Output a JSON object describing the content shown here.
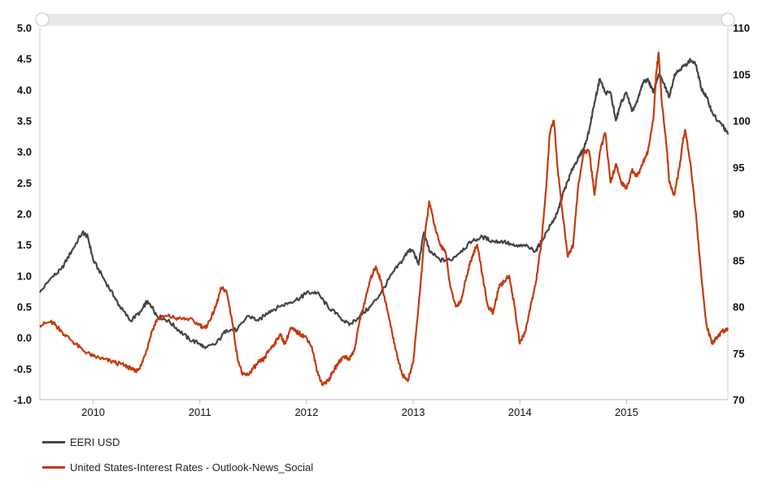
{
  "chart_data": {
    "type": "line",
    "y_left": {
      "ylim": [
        -1.0,
        5.0
      ],
      "ticks": [
        "5.0",
        "4.5",
        "4.0",
        "3.5",
        "3.0",
        "2.5",
        "2.0",
        "1.5",
        "1.0",
        "0.5",
        "0.0",
        "-0.5",
        "-1.0"
      ]
    },
    "y_right": {
      "ylim": [
        70,
        110
      ],
      "ticks": [
        "110",
        "105",
        "100",
        "95",
        "90",
        "85",
        "80",
        "75",
        "70"
      ]
    },
    "x_ticks": [
      {
        "label": "2010",
        "x": 2010.0
      },
      {
        "label": "2011",
        "x": 2011.0
      },
      {
        "label": "2012",
        "x": 2012.0
      },
      {
        "label": "2013",
        "x": 2013.0
      },
      {
        "label": "2014",
        "x": 2014.0
      },
      {
        "label": "2015",
        "x": 2015.0
      }
    ],
    "xlim": [
      2009.5,
      2015.95
    ],
    "grid": false,
    "legend_placement": "bottom-left",
    "series": [
      {
        "name": "EERI USD",
        "axis": "right",
        "color": "#444444",
        "points": [
          [
            2009.5,
            81.5
          ],
          [
            2009.6,
            83
          ],
          [
            2009.7,
            84
          ],
          [
            2009.8,
            86
          ],
          [
            2009.9,
            88
          ],
          [
            2009.95,
            87.5
          ],
          [
            2010.0,
            85
          ],
          [
            2010.1,
            83
          ],
          [
            2010.2,
            81
          ],
          [
            2010.25,
            80
          ],
          [
            2010.35,
            78.5
          ],
          [
            2010.45,
            79.5
          ],
          [
            2010.5,
            80.5
          ],
          [
            2010.55,
            80
          ],
          [
            2010.6,
            79
          ],
          [
            2010.7,
            78.5
          ],
          [
            2010.8,
            77.5
          ],
          [
            2010.9,
            76.5
          ],
          [
            2011.0,
            76
          ],
          [
            2011.05,
            75.5
          ],
          [
            2011.15,
            76
          ],
          [
            2011.25,
            77.5
          ],
          [
            2011.35,
            77.5
          ],
          [
            2011.45,
            79
          ],
          [
            2011.55,
            78.5
          ],
          [
            2011.65,
            79.5
          ],
          [
            2011.75,
            80
          ],
          [
            2011.85,
            80.5
          ],
          [
            2011.95,
            81
          ],
          [
            2012.0,
            81.5
          ],
          [
            2012.1,
            81.5
          ],
          [
            2012.2,
            80
          ],
          [
            2012.3,
            79
          ],
          [
            2012.4,
            78
          ],
          [
            2012.5,
            79
          ],
          [
            2012.6,
            80
          ],
          [
            2012.7,
            81.5
          ],
          [
            2012.8,
            83.5
          ],
          [
            2012.9,
            85
          ],
          [
            2012.95,
            86
          ],
          [
            2013.0,
            86
          ],
          [
            2013.05,
            84.5
          ],
          [
            2013.1,
            88
          ],
          [
            2013.15,
            86
          ],
          [
            2013.25,
            85
          ],
          [
            2013.35,
            85
          ],
          [
            2013.45,
            86
          ],
          [
            2013.55,
            87
          ],
          [
            2013.65,
            87.5
          ],
          [
            2013.75,
            87
          ],
          [
            2013.85,
            87
          ],
          [
            2013.95,
            86.5
          ],
          [
            2014.05,
            86.5
          ],
          [
            2014.15,
            86
          ],
          [
            2014.2,
            87
          ],
          [
            2014.3,
            89
          ],
          [
            2014.35,
            90
          ],
          [
            2014.4,
            92
          ],
          [
            2014.45,
            93.5
          ],
          [
            2014.5,
            95
          ],
          [
            2014.55,
            96
          ],
          [
            2014.6,
            97
          ],
          [
            2014.65,
            99
          ],
          [
            2014.7,
            102
          ],
          [
            2014.75,
            104.5
          ],
          [
            2014.8,
            103
          ],
          [
            2014.85,
            103
          ],
          [
            2014.9,
            100
          ],
          [
            2014.95,
            102
          ],
          [
            2015.0,
            103
          ],
          [
            2015.05,
            101
          ],
          [
            2015.1,
            102
          ],
          [
            2015.15,
            104
          ],
          [
            2015.2,
            104.5
          ],
          [
            2015.25,
            103
          ],
          [
            2015.3,
            105
          ],
          [
            2015.35,
            104
          ],
          [
            2015.4,
            102.5
          ],
          [
            2015.45,
            105
          ],
          [
            2015.5,
            105.5
          ],
          [
            2015.55,
            106
          ],
          [
            2015.6,
            106.5
          ],
          [
            2015.65,
            106
          ],
          [
            2015.7,
            103.5
          ],
          [
            2015.75,
            102.5
          ],
          [
            2015.8,
            101
          ],
          [
            2015.85,
            100
          ],
          [
            2015.9,
            99.5
          ],
          [
            2015.95,
            98.5
          ]
        ]
      },
      {
        "name": "United States-Interest Rates - Outlook-News_Social",
        "axis": "left",
        "color": "#c23b0e",
        "points": [
          [
            2009.5,
            0.2
          ],
          [
            2009.6,
            0.25
          ],
          [
            2009.65,
            0.2
          ],
          [
            2009.7,
            0.1
          ],
          [
            2009.8,
            -0.05
          ],
          [
            2009.9,
            -0.2
          ],
          [
            2010.0,
            -0.3
          ],
          [
            2010.1,
            -0.35
          ],
          [
            2010.2,
            -0.4
          ],
          [
            2010.3,
            -0.45
          ],
          [
            2010.35,
            -0.5
          ],
          [
            2010.4,
            -0.55
          ],
          [
            2010.45,
            -0.45
          ],
          [
            2010.5,
            -0.2
          ],
          [
            2010.55,
            0.1
          ],
          [
            2010.6,
            0.3
          ],
          [
            2010.7,
            0.35
          ],
          [
            2010.8,
            0.3
          ],
          [
            2010.9,
            0.3
          ],
          [
            2011.0,
            0.2
          ],
          [
            2011.05,
            0.15
          ],
          [
            2011.1,
            0.3
          ],
          [
            2011.15,
            0.5
          ],
          [
            2011.2,
            0.8
          ],
          [
            2011.25,
            0.75
          ],
          [
            2011.3,
            0.3
          ],
          [
            2011.35,
            -0.3
          ],
          [
            2011.4,
            -0.6
          ],
          [
            2011.45,
            -0.6
          ],
          [
            2011.5,
            -0.5
          ],
          [
            2011.55,
            -0.4
          ],
          [
            2011.6,
            -0.35
          ],
          [
            2011.65,
            -0.2
          ],
          [
            2011.7,
            -0.1
          ],
          [
            2011.75,
            0.05
          ],
          [
            2011.8,
            -0.1
          ],
          [
            2011.85,
            0.15
          ],
          [
            2011.9,
            0.1
          ],
          [
            2011.95,
            0.05
          ],
          [
            2012.0,
            0.0
          ],
          [
            2012.05,
            -0.15
          ],
          [
            2012.1,
            -0.55
          ],
          [
            2012.15,
            -0.75
          ],
          [
            2012.2,
            -0.7
          ],
          [
            2012.25,
            -0.55
          ],
          [
            2012.3,
            -0.4
          ],
          [
            2012.35,
            -0.3
          ],
          [
            2012.4,
            -0.35
          ],
          [
            2012.45,
            -0.2
          ],
          [
            2012.5,
            0.3
          ],
          [
            2012.55,
            0.6
          ],
          [
            2012.6,
            0.95
          ],
          [
            2012.65,
            1.15
          ],
          [
            2012.7,
            0.9
          ],
          [
            2012.75,
            0.5
          ],
          [
            2012.8,
            0.1
          ],
          [
            2012.85,
            -0.3
          ],
          [
            2012.9,
            -0.6
          ],
          [
            2012.95,
            -0.7
          ],
          [
            2013.0,
            -0.4
          ],
          [
            2013.05,
            0.5
          ],
          [
            2013.1,
            1.5
          ],
          [
            2013.15,
            2.2
          ],
          [
            2013.2,
            1.8
          ],
          [
            2013.25,
            1.5
          ],
          [
            2013.3,
            1.4
          ],
          [
            2013.35,
            0.8
          ],
          [
            2013.4,
            0.5
          ],
          [
            2013.45,
            0.6
          ],
          [
            2013.5,
            1.0
          ],
          [
            2013.55,
            1.3
          ],
          [
            2013.6,
            1.5
          ],
          [
            2013.65,
            1.0
          ],
          [
            2013.7,
            0.5
          ],
          [
            2013.75,
            0.4
          ],
          [
            2013.8,
            0.8
          ],
          [
            2013.85,
            0.9
          ],
          [
            2013.9,
            1.0
          ],
          [
            2013.95,
            0.5
          ],
          [
            2014.0,
            -0.1
          ],
          [
            2014.05,
            0.1
          ],
          [
            2014.1,
            0.5
          ],
          [
            2014.15,
            0.9
          ],
          [
            2014.2,
            1.5
          ],
          [
            2014.25,
            2.5
          ],
          [
            2014.28,
            3.3
          ],
          [
            2014.32,
            3.5
          ],
          [
            2014.35,
            2.8
          ],
          [
            2014.4,
            2.0
          ],
          [
            2014.45,
            1.3
          ],
          [
            2014.5,
            1.5
          ],
          [
            2014.55,
            2.5
          ],
          [
            2014.6,
            3.0
          ],
          [
            2014.65,
            3.0
          ],
          [
            2014.7,
            2.3
          ],
          [
            2014.75,
            3.0
          ],
          [
            2014.8,
            3.3
          ],
          [
            2014.85,
            2.5
          ],
          [
            2014.9,
            2.8
          ],
          [
            2014.95,
            2.5
          ],
          [
            2015.0,
            2.4
          ],
          [
            2015.05,
            2.7
          ],
          [
            2015.1,
            2.6
          ],
          [
            2015.15,
            2.8
          ],
          [
            2015.2,
            3.0
          ],
          [
            2015.25,
            3.5
          ],
          [
            2015.28,
            4.3
          ],
          [
            2015.3,
            4.6
          ],
          [
            2015.33,
            3.8
          ],
          [
            2015.38,
            3.0
          ],
          [
            2015.4,
            2.5
          ],
          [
            2015.45,
            2.3
          ],
          [
            2015.5,
            2.8
          ],
          [
            2015.53,
            3.2
          ],
          [
            2015.55,
            3.35
          ],
          [
            2015.6,
            2.8
          ],
          [
            2015.65,
            2.0
          ],
          [
            2015.7,
            1.0
          ],
          [
            2015.75,
            0.2
          ],
          [
            2015.8,
            -0.1
          ],
          [
            2015.85,
            0.0
          ],
          [
            2015.9,
            0.1
          ],
          [
            2015.95,
            0.15
          ]
        ]
      }
    ]
  },
  "legend": {
    "items": [
      {
        "label": "EERI USD",
        "color": "#444444"
      },
      {
        "label": "United States-Interest Rates - Outlook-News_Social",
        "color": "#c23b0e"
      }
    ]
  }
}
